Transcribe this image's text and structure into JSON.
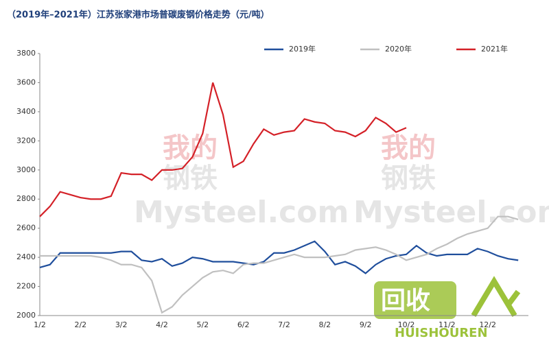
{
  "chart_data": {
    "type": "line",
    "title": "（2019年–2021年）江苏张家港市场普碳废钢价格走势（元/吨）",
    "categories": [
      "1/2",
      null,
      null,
      null,
      "2/2",
      null,
      null,
      null,
      "3/2",
      null,
      null,
      null,
      "4/2",
      null,
      null,
      null,
      "5/2",
      null,
      null,
      null,
      "6/2",
      null,
      null,
      null,
      "7/2",
      null,
      null,
      null,
      "8/2",
      null,
      null,
      null,
      "9/2",
      null,
      null,
      null,
      "10/2",
      null,
      null,
      null,
      "11/2",
      null,
      null,
      null,
      "12/2",
      null,
      null,
      null
    ],
    "series": [
      {
        "name": "2019年",
        "color": "#1f4e9c",
        "values": [
          2330,
          2350,
          2430,
          2430,
          2430,
          2430,
          2430,
          2430,
          2440,
          2440,
          2380,
          2370,
          2390,
          2340,
          2360,
          2400,
          2390,
          2370,
          2370,
          2370,
          2360,
          2350,
          2370,
          2430,
          2430,
          2450,
          2480,
          2510,
          2440,
          2350,
          2370,
          2340,
          2290,
          2350,
          2390,
          2410,
          2420,
          2480,
          2430,
          2410,
          2420,
          2420,
          2420,
          2460,
          2440,
          2410,
          2390,
          2380
        ]
      },
      {
        "name": "2020年",
        "color": "#c0c0c0",
        "values": [
          2410,
          2410,
          2410,
          2410,
          2410,
          2410,
          2400,
          2380,
          2350,
          2350,
          2330,
          2240,
          2020,
          2060,
          2140,
          2200,
          2260,
          2300,
          2310,
          2290,
          2350,
          2360,
          2360,
          2380,
          2400,
          2420,
          2400,
          2400,
          2400,
          2410,
          2420,
          2450,
          2460,
          2470,
          2450,
          2420,
          2380,
          2400,
          2420,
          2460,
          2490,
          2530,
          2560,
          2580,
          2600,
          2680,
          2680,
          2660
        ]
      },
      {
        "name": "2021年",
        "color": "#d42027",
        "values": [
          2680,
          2750,
          2850,
          2830,
          2810,
          2800,
          2800,
          2820,
          2980,
          2970,
          2970,
          2930,
          3000,
          3000,
          3010,
          3090,
          3250,
          3600,
          3380,
          3020,
          3060,
          3180,
          3280,
          3240,
          3260,
          3270,
          3350,
          3330,
          3320,
          3270,
          3260,
          3230,
          3270,
          3360,
          3320,
          3260,
          3290,
          null,
          null,
          null,
          null,
          null,
          null,
          null,
          null,
          null,
          null,
          null
        ]
      }
    ],
    "ylim": [
      2000,
      3800
    ],
    "yticks": [
      2000,
      2200,
      2400,
      2600,
      2800,
      3000,
      3200,
      3400,
      3600,
      3800
    ],
    "watermarks": [
      "我的",
      "钢铁",
      "Mysteel.com",
      "我的",
      "钢铁",
      "Mysteel.com",
      "回收",
      "HUISHOUREN"
    ]
  }
}
